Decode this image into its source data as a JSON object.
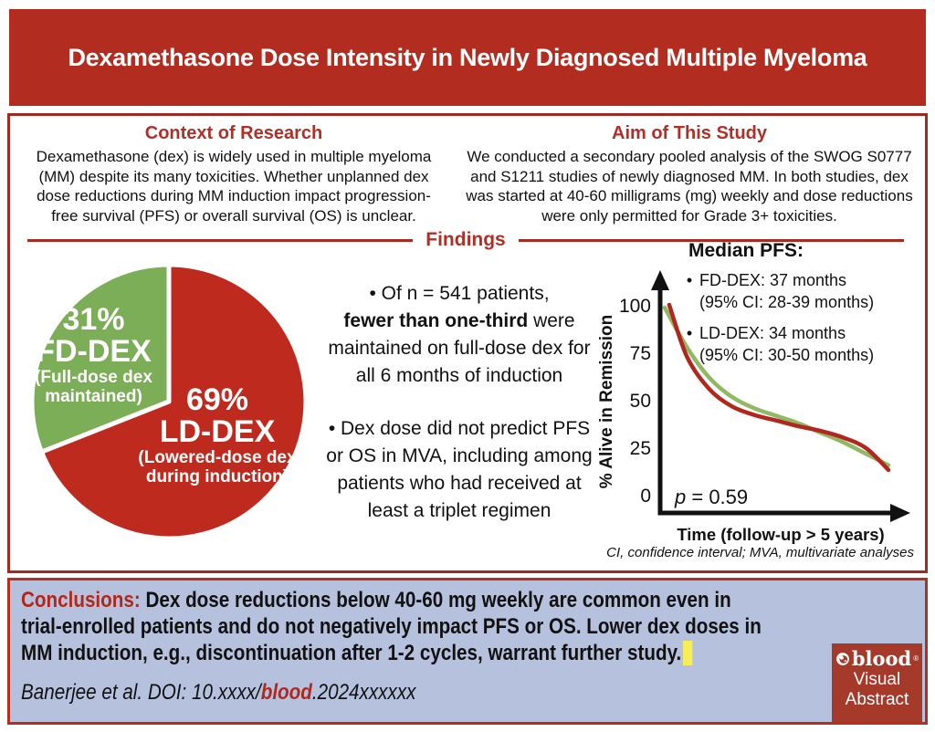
{
  "colors": {
    "header_red": "#B22C1F",
    "border_red": "#A12B22",
    "heading_red": "#B03028",
    "pie_green": "#7CAD57",
    "pie_red": "#BE2A1E",
    "curve_green": "#8FB963",
    "curve_red": "#B2271D",
    "panel_blue": "#B6C2DD",
    "logo_red": "#A53A2B",
    "highlight_yellow": "#F7EE55"
  },
  "title": "Dexamethasone Dose Intensity in Newly Diagnosed Multiple Myeloma",
  "context": {
    "heading": "Context of Research",
    "body": "Dexamethasone (dex) is widely used in multiple myeloma (MM) despite its many toxicities. Whether unplanned dex dose reductions during MM induction impact progression-free survival (PFS) or overall survival (OS) is unclear."
  },
  "aim": {
    "heading": "Aim of This Study",
    "body": "We conducted a secondary pooled analysis of the SWOG S0777 and S1211 studies of newly diagnosed MM. In both studies, dex was started at 40-60 milligrams (mg) weekly and dose reductions were only permitted for Grade 3+ toxicities."
  },
  "findings_heading": "Findings",
  "finding_bullets": {
    "b1_l1": "• Of n = 541 patients,",
    "b1_l2_bold": "fewer than one-third",
    "b1_l2_rest": " were",
    "b1_l3": "maintained on full-dose dex for",
    "b1_l4": "all 6 months of induction",
    "b2_l1": "• Dex dose did not predict PFS",
    "b2_l2": "or OS in MVA, including among",
    "b2_l3": "patients who had received at",
    "b2_l4": "least a triplet regimen"
  },
  "median_pfs": {
    "heading": "Median PFS:",
    "items": [
      {
        "bullet": "•",
        "line1": "FD-DEX: 37 months",
        "line2": "(95% CI: 28-39 months)"
      },
      {
        "bullet": "•",
        "line1": "LD-DEX: 34 months",
        "line2": "(95% CI: 30-50 months)"
      }
    ]
  },
  "chart_data": [
    {
      "type": "pie",
      "slices": [
        {
          "label": "FD-DEX",
          "pct": "31%",
          "value": 31,
          "sublabel": "(Full-dose dex maintained)",
          "color": "#7CAD57"
        },
        {
          "label": "LD-DEX",
          "pct": "69%",
          "value": 69,
          "sublabel": "(Lowered-dose dex during induction)",
          "color": "#BE2A1E"
        }
      ]
    },
    {
      "type": "line",
      "xlabel": "Time (follow-up > 5 years)",
      "ylabel": "% Alive in Remission",
      "yticks": [
        100,
        75,
        50,
        25,
        0
      ],
      "ylim": [
        0,
        100
      ],
      "p_label": {
        "italic": "p",
        "rest": " = 0.59"
      },
      "legend_position": "top-right",
      "series": [
        {
          "name": "FD-DEX",
          "color": "#8FB963",
          "x": [
            0,
            1,
            2,
            3,
            4,
            5,
            6,
            7,
            8,
            9,
            10
          ],
          "y": [
            99,
            78,
            62,
            52,
            46,
            42,
            38,
            33,
            28,
            22,
            16
          ]
        },
        {
          "name": "LD-DEX",
          "color": "#B2271D",
          "x": [
            0.2,
            1,
            2,
            3,
            4,
            5,
            6,
            7,
            8,
            9,
            10
          ],
          "y": [
            100.5,
            73,
            56,
            47,
            42.5,
            39.5,
            36.5,
            34,
            30.5,
            25,
            13.5
          ]
        }
      ]
    }
  ],
  "footnote": "CI, confidence interval; MVA, multivariate analyses",
  "conclusions": {
    "label": "Conclusions:",
    "line1": " Dex dose reductions below 40-60 mg weekly are common even in",
    "line2": "trial-enrolled patients and do not negatively impact PFS or OS. Lower dex doses in",
    "line3": "MM induction, e.g., discontinuation after 1-2 cycles, warrant further study."
  },
  "citation": {
    "pre": "Banerjee et al. DOI: 10.xxxx/",
    "brand": "blood",
    "post": ".2024xxxxxx"
  },
  "logo": {
    "brand": "blood",
    "reg": "®",
    "line1": "Visual",
    "line2": "Abstract"
  }
}
